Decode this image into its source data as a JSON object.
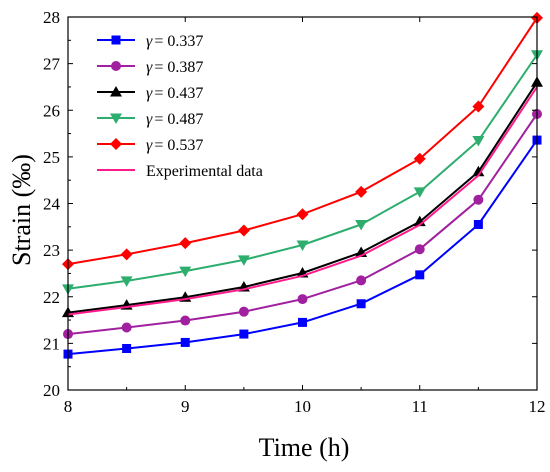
{
  "chart_data": {
    "type": "line",
    "xlabel": "Time (h)",
    "ylabel": "Strain (‰)",
    "xlim": [
      8,
      12
    ],
    "ylim": [
      20,
      28
    ],
    "xticks": [
      "8",
      "9",
      "10",
      "11",
      "12"
    ],
    "yticks": [
      "20",
      "21",
      "22",
      "23",
      "24",
      "25",
      "26",
      "27",
      "28"
    ],
    "x": [
      8,
      8.5,
      9,
      9.5,
      10,
      10.5,
      11,
      11.5,
      12
    ],
    "grid": false,
    "legend_position": "top-left",
    "series": [
      {
        "name": "γ = 0.337",
        "symbol": "γ",
        "value_text": "= 0.337",
        "color": "#0000FF",
        "marker": "square",
        "values": [
          20.77,
          20.89,
          21.02,
          21.2,
          21.45,
          21.85,
          22.47,
          23.55,
          25.36
        ]
      },
      {
        "name": "γ = 0.387",
        "symbol": "γ",
        "value_text": "= 0.387",
        "color": "#A020A0",
        "marker": "circle",
        "values": [
          21.2,
          21.34,
          21.49,
          21.68,
          21.95,
          22.35,
          23.02,
          24.08,
          25.92
        ]
      },
      {
        "name": "γ = 0.437",
        "symbol": "γ",
        "value_text": "= 0.437",
        "color": "#000000",
        "marker": "triangle-up",
        "values": [
          21.66,
          21.82,
          21.99,
          22.21,
          22.51,
          22.95,
          23.61,
          24.68,
          26.6
        ]
      },
      {
        "name": "γ = 0.487",
        "symbol": "γ",
        "value_text": "= 0.487",
        "color": "#2EAE6E",
        "marker": "triangle-down",
        "values": [
          22.17,
          22.34,
          22.55,
          22.79,
          23.11,
          23.55,
          24.25,
          25.35,
          27.19
        ]
      },
      {
        "name": "γ = 0.537",
        "symbol": "γ",
        "value_text": "= 0.537",
        "color": "#FF0000",
        "marker": "diamond",
        "values": [
          22.7,
          22.91,
          23.15,
          23.42,
          23.77,
          24.25,
          24.96,
          26.08,
          27.98
        ]
      },
      {
        "name": "Experimental data",
        "symbol": "",
        "value_text": "Experimental data",
        "color": "#FF1A8C",
        "marker": "none",
        "values": [
          21.62,
          21.78,
          21.95,
          22.16,
          22.45,
          22.88,
          23.54,
          24.6,
          26.5
        ]
      }
    ]
  }
}
